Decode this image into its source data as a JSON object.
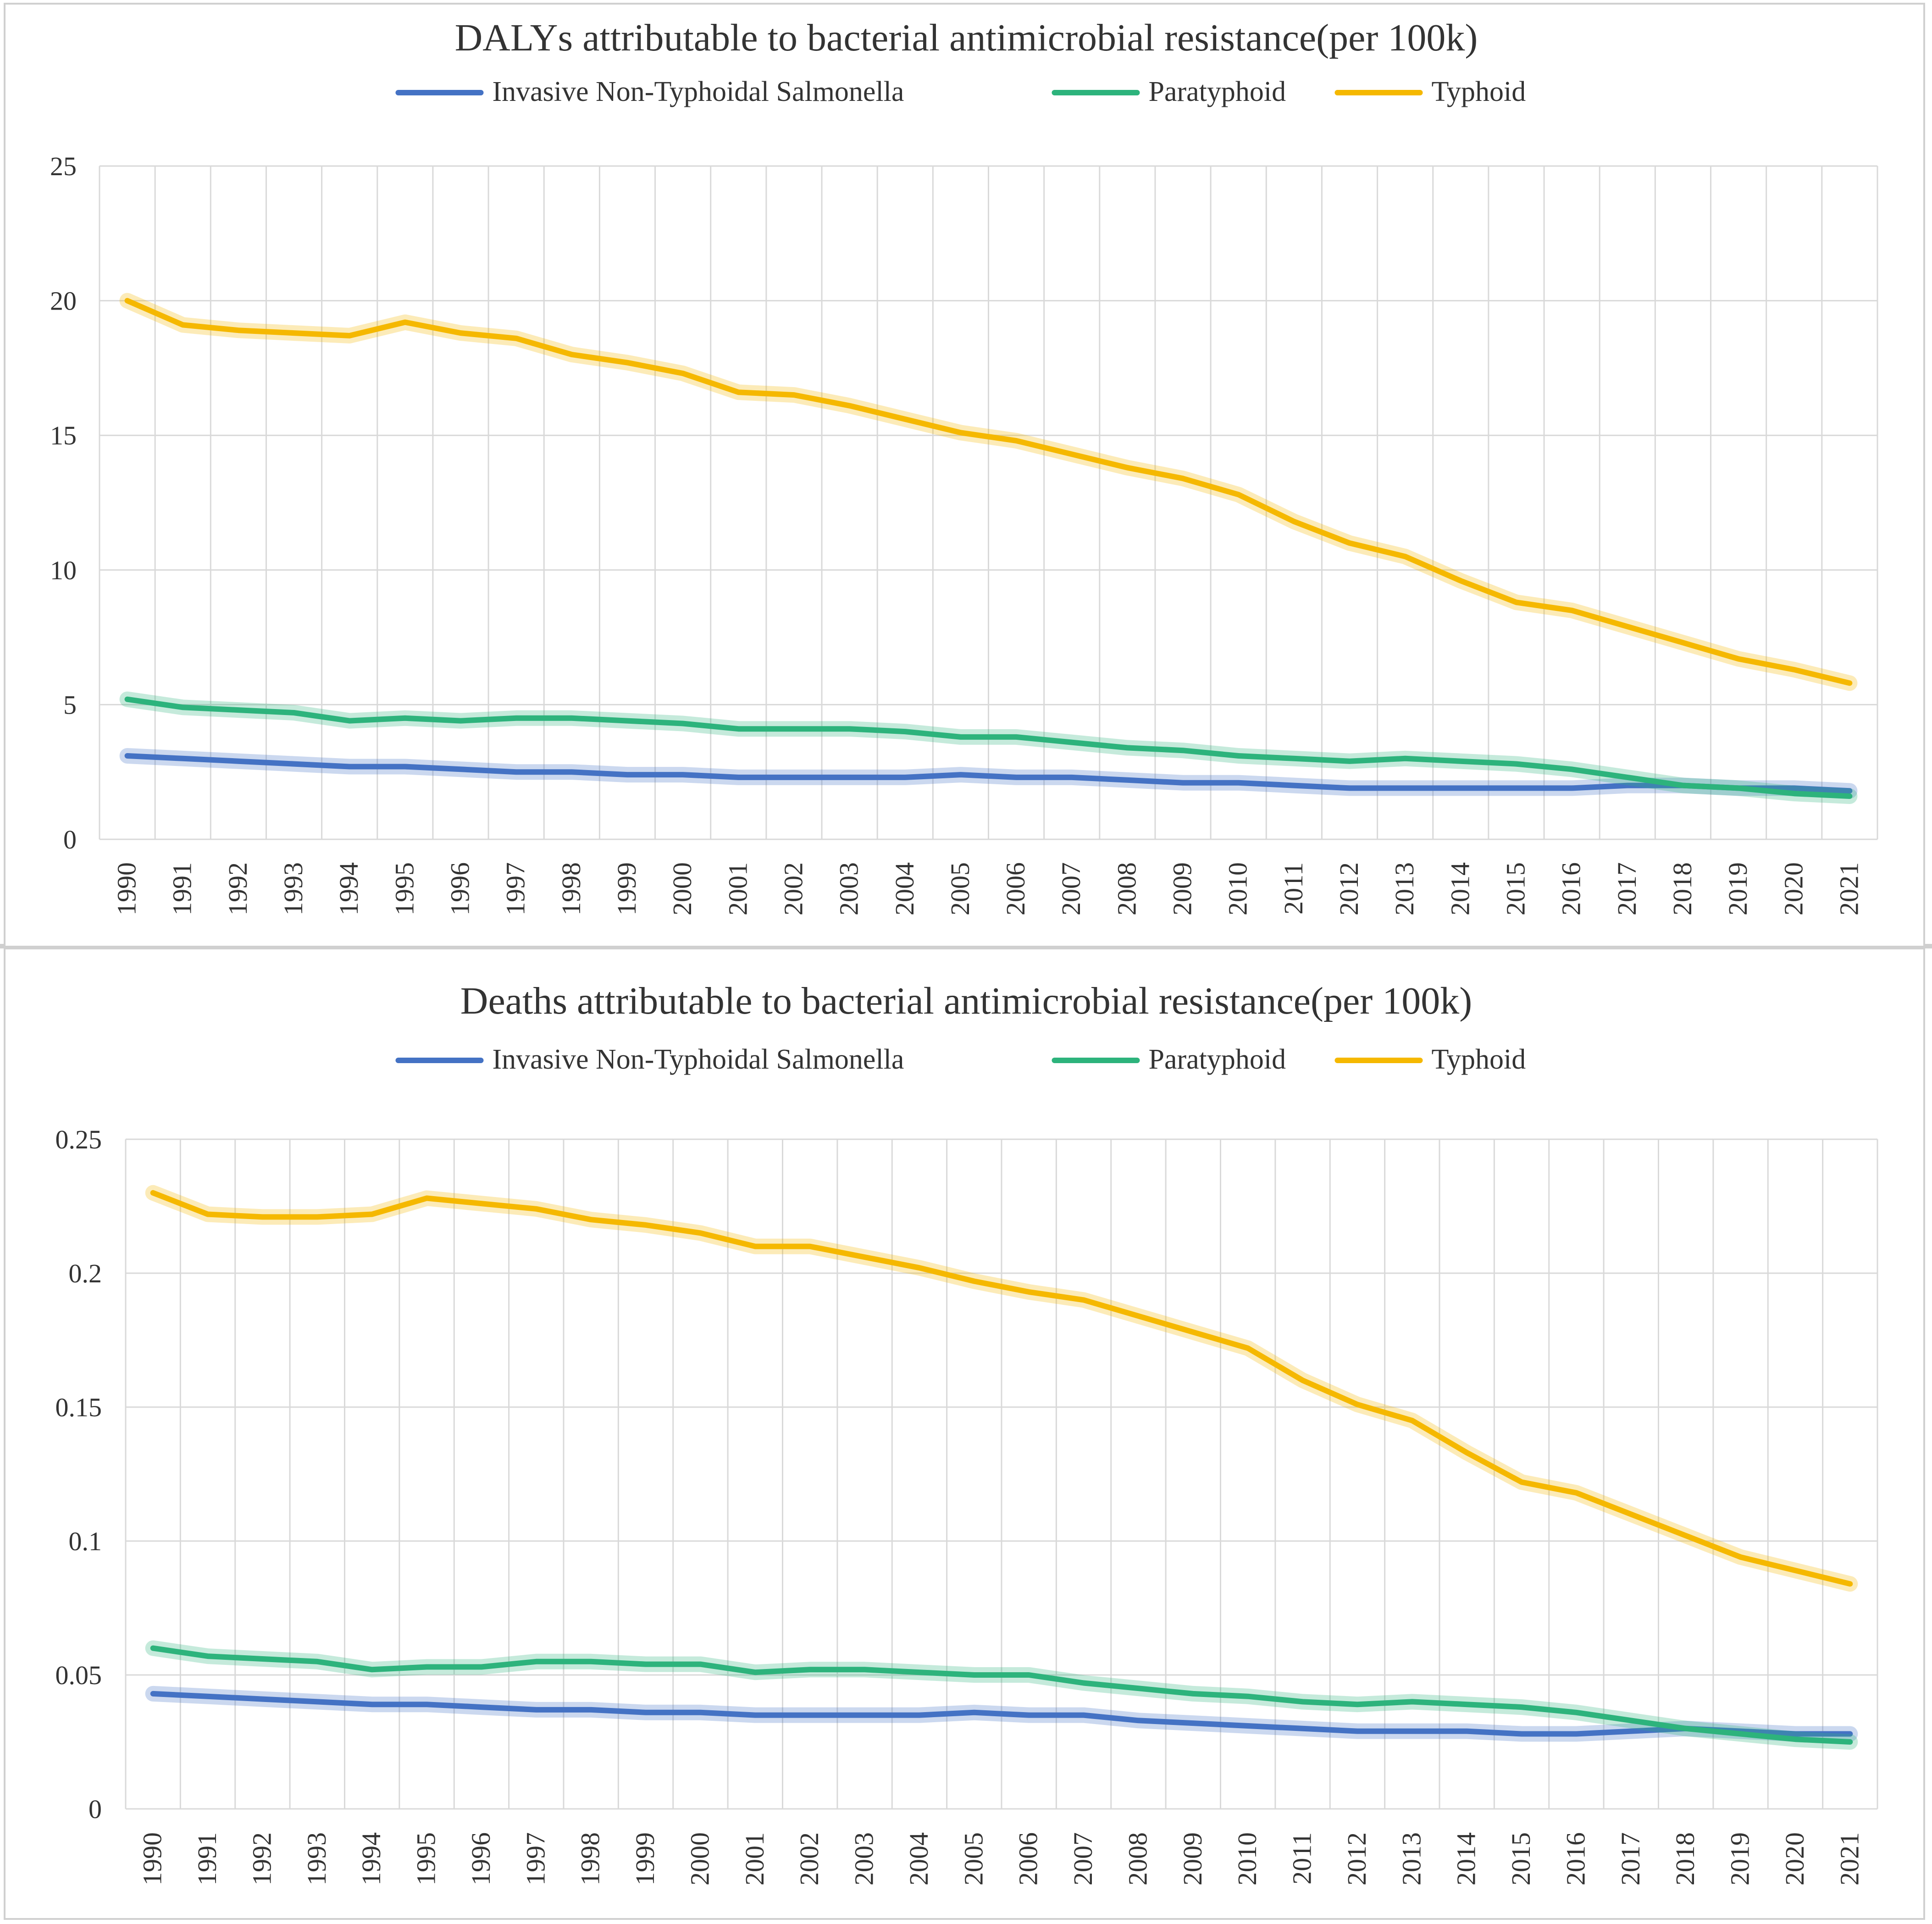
{
  "chart_data": [
    {
      "type": "line",
      "title": "DALYs attributable to bacterial antimicrobial resistance(per 100k)",
      "xlabel": "",
      "ylabel": "",
      "ylim": [
        0,
        25
      ],
      "yticks": [
        "0",
        "5",
        "10",
        "15",
        "20",
        "25"
      ],
      "grid": true,
      "legend_position": "top",
      "categories": [
        "1990",
        "1991",
        "1992",
        "1993",
        "1994",
        "1995",
        "1996",
        "1997",
        "1998",
        "1999",
        "2000",
        "2001",
        "2002",
        "2003",
        "2004",
        "2005",
        "2006",
        "2007",
        "2008",
        "2009",
        "2010",
        "2011",
        "2012",
        "2013",
        "2014",
        "2015",
        "2016",
        "2017",
        "2018",
        "2019",
        "2020",
        "2021"
      ],
      "series": [
        {
          "name": "Invasive Non-Typhoidal Salmonella",
          "color": "#4472C4",
          "values": [
            3.1,
            3.0,
            2.9,
            2.8,
            2.7,
            2.7,
            2.6,
            2.5,
            2.5,
            2.4,
            2.4,
            2.3,
            2.3,
            2.3,
            2.3,
            2.4,
            2.3,
            2.3,
            2.2,
            2.1,
            2.1,
            2.0,
            1.9,
            1.9,
            1.9,
            1.9,
            1.9,
            2.0,
            2.0,
            1.9,
            1.9,
            1.8
          ]
        },
        {
          "name": "Paratyphoid",
          "color": "#2DB37C",
          "values": [
            5.2,
            4.9,
            4.8,
            4.7,
            4.4,
            4.5,
            4.4,
            4.5,
            4.5,
            4.4,
            4.3,
            4.1,
            4.1,
            4.1,
            4.0,
            3.8,
            3.8,
            3.6,
            3.4,
            3.3,
            3.1,
            3.0,
            2.9,
            3.0,
            2.9,
            2.8,
            2.6,
            2.3,
            2.0,
            1.9,
            1.7,
            1.6
          ]
        },
        {
          "name": "Typhoid",
          "color": "#F5B800",
          "values": [
            20.0,
            19.1,
            18.9,
            18.8,
            18.7,
            19.2,
            18.8,
            18.6,
            18.0,
            17.7,
            17.3,
            16.6,
            16.5,
            16.1,
            15.6,
            15.1,
            14.8,
            14.3,
            13.8,
            13.4,
            12.8,
            11.8,
            11.0,
            10.5,
            9.6,
            8.8,
            8.5,
            7.9,
            7.3,
            6.7,
            6.3,
            5.8
          ]
        }
      ]
    },
    {
      "type": "line",
      "title": "Deaths attributable to bacterial antimicrobial resistance(per 100k)",
      "xlabel": "",
      "ylabel": "",
      "ylim": [
        0,
        0.25
      ],
      "yticks": [
        "0",
        "0.05",
        "0.1",
        "0.15",
        "0.2",
        "0.25"
      ],
      "grid": true,
      "legend_position": "top",
      "categories": [
        "1990",
        "1991",
        "1992",
        "1993",
        "1994",
        "1995",
        "1996",
        "1997",
        "1998",
        "1999",
        "2000",
        "2001",
        "2002",
        "2003",
        "2004",
        "2005",
        "2006",
        "2007",
        "2008",
        "2009",
        "2010",
        "2011",
        "2012",
        "2013",
        "2014",
        "2015",
        "2016",
        "2017",
        "2018",
        "2019",
        "2020",
        "2021"
      ],
      "series": [
        {
          "name": "Invasive Non-Typhoidal Salmonella",
          "color": "#4472C4",
          "values": [
            0.043,
            0.042,
            0.041,
            0.04,
            0.039,
            0.039,
            0.038,
            0.037,
            0.037,
            0.036,
            0.036,
            0.035,
            0.035,
            0.035,
            0.035,
            0.036,
            0.035,
            0.035,
            0.033,
            0.032,
            0.031,
            0.03,
            0.029,
            0.029,
            0.029,
            0.028,
            0.028,
            0.029,
            0.03,
            0.029,
            0.028,
            0.028
          ]
        },
        {
          "name": "Paratyphoid",
          "color": "#2DB37C",
          "values": [
            0.06,
            0.057,
            0.056,
            0.055,
            0.052,
            0.053,
            0.053,
            0.055,
            0.055,
            0.054,
            0.054,
            0.051,
            0.052,
            0.052,
            0.051,
            0.05,
            0.05,
            0.047,
            0.045,
            0.043,
            0.042,
            0.04,
            0.039,
            0.04,
            0.039,
            0.038,
            0.036,
            0.033,
            0.03,
            0.028,
            0.026,
            0.025
          ]
        },
        {
          "name": "Typhoid",
          "color": "#F5B800",
          "values": [
            0.23,
            0.222,
            0.221,
            0.221,
            0.222,
            0.228,
            0.226,
            0.224,
            0.22,
            0.218,
            0.215,
            0.21,
            0.21,
            0.206,
            0.202,
            0.197,
            0.193,
            0.19,
            0.184,
            0.178,
            0.172,
            0.16,
            0.151,
            0.145,
            0.133,
            0.122,
            0.118,
            0.11,
            0.102,
            0.094,
            0.089,
            0.084
          ]
        }
      ]
    }
  ]
}
